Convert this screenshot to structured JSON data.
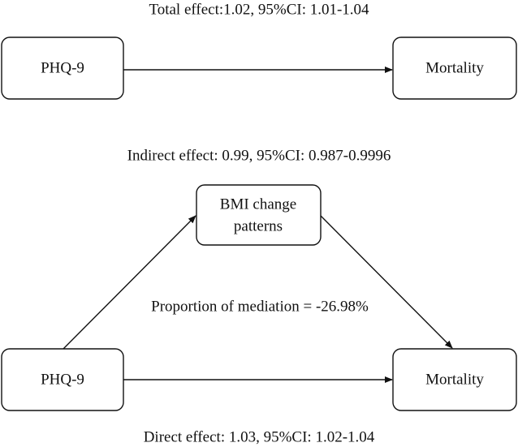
{
  "top_panel": {
    "total_effect": "Total effect:1.02, 95%CI: 1.01-1.04",
    "nodes": [
      {
        "label": "PHQ-9"
      },
      {
        "label": "Mortality"
      }
    ]
  },
  "bottom_panel": {
    "indirect_effect": "Indirect effect: 0.99, 95%CI: 0.987-0.9996",
    "proportion_of_mediation": "Proportion of mediation = -26.98%",
    "direct_effect": "Direct effect: 1.03, 95%CI: 1.02-1.04",
    "nodes": [
      {
        "label": "PHQ-9"
      },
      {
        "label_lines": [
          "BMI change",
          "patterns"
        ]
      },
      {
        "label": "Mortality"
      }
    ]
  }
}
